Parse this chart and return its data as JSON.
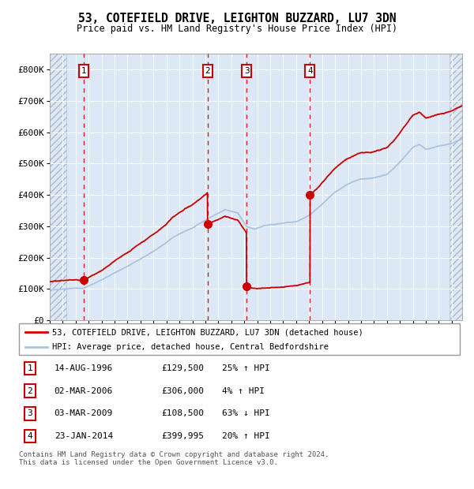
{
  "title": "53, COTEFIELD DRIVE, LEIGHTON BUZZARD, LU7 3DN",
  "subtitle": "Price paid vs. HM Land Registry's House Price Index (HPI)",
  "legend_line1": "53, COTEFIELD DRIVE, LEIGHTON BUZZARD, LU7 3DN (detached house)",
  "legend_line2": "HPI: Average price, detached house, Central Bedfordshire",
  "footer": "Contains HM Land Registry data © Crown copyright and database right 2024.\nThis data is licensed under the Open Government Licence v3.0.",
  "transactions": [
    {
      "num": 1,
      "date": "14-AUG-1996",
      "price": 129500,
      "pct": "25%",
      "dir": "↑"
    },
    {
      "num": 2,
      "date": "02-MAR-2006",
      "price": 306000,
      "pct": "4%",
      "dir": "↑"
    },
    {
      "num": 3,
      "date": "03-MAR-2009",
      "price": 108500,
      "pct": "63%",
      "dir": "↓"
    },
    {
      "num": 4,
      "date": "23-JAN-2014",
      "price": 399995,
      "pct": "20%",
      "dir": "↑"
    }
  ],
  "transaction_dates_decimal": [
    1996.617,
    2006.163,
    2009.168,
    2014.063
  ],
  "transaction_prices": [
    129500,
    306000,
    108500,
    399995
  ],
  "hpi_color": "#aac4e0",
  "price_color": "#cc0000",
  "dot_color": "#cc0000",
  "vline_color": "#cc0000",
  "box_color": "#cc0000",
  "plot_bg_color": "#dce8f5",
  "ylim": [
    0,
    850000
  ],
  "xlim_start": 1994.0,
  "xlim_end": 2025.8,
  "ylabel_ticks": [
    0,
    100000,
    200000,
    300000,
    400000,
    500000,
    600000,
    700000,
    800000
  ],
  "ylabel_labels": [
    "£0",
    "£100K",
    "£200K",
    "£300K",
    "£400K",
    "£500K",
    "£600K",
    "£700K",
    "£800K"
  ]
}
